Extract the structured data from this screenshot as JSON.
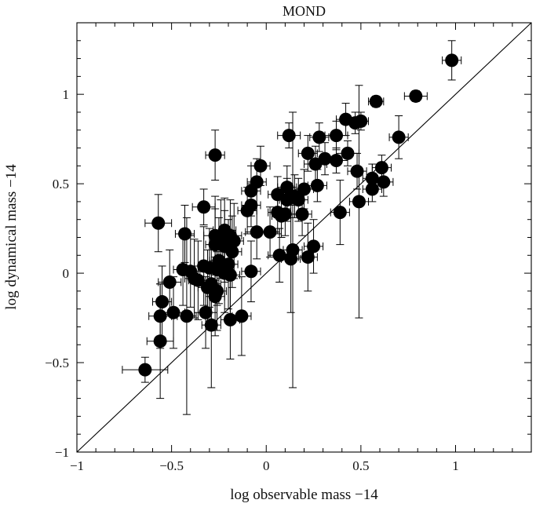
{
  "chart_data": {
    "type": "scatter",
    "title": "MOND",
    "xlabel": "log observable mass −14",
    "ylabel": "log dynamical mass −14",
    "xlim": [
      -1,
      1.4
    ],
    "ylim": [
      -1,
      1.4
    ],
    "x_ticks": [
      {
        "value": -1,
        "label": "−1"
      },
      {
        "value": -0.5,
        "label": "−0.5"
      },
      {
        "value": 0,
        "label": "0"
      },
      {
        "value": 0.5,
        "label": "0.5"
      },
      {
        "value": 1,
        "label": "1"
      }
    ],
    "y_ticks": [
      {
        "value": -1,
        "label": "−1"
      },
      {
        "value": -0.5,
        "label": "−0.5"
      },
      {
        "value": 0,
        "label": "0"
      },
      {
        "value": 0.5,
        "label": "0.5"
      },
      {
        "value": 1,
        "label": "1"
      }
    ],
    "reference_line": {
      "description": "y = x",
      "from": [
        -1,
        -1
      ],
      "to": [
        1.4,
        1.4
      ]
    },
    "grid": false,
    "marker_color": "#000000",
    "points": [
      {
        "x": 0.98,
        "y": 1.19,
        "xerr": 0.05,
        "yerr": 0.11
      },
      {
        "x": 0.79,
        "y": 0.99,
        "xerr": 0.06,
        "yerr": 0.03
      },
      {
        "x": 0.58,
        "y": 0.96,
        "xerr": 0.04,
        "yerr": 0.03
      },
      {
        "x": 0.42,
        "y": 0.86,
        "xerr": 0.05,
        "yerr": 0.09
      },
      {
        "x": 0.47,
        "y": 0.84,
        "xerr": 0.05,
        "yerr": 0.06
      },
      {
        "x": 0.5,
        "y": 0.85,
        "xerr": 0.04,
        "yerr": 0.05
      },
      {
        "x": 0.7,
        "y": 0.76,
        "xerr": 0.05,
        "yerr": 0.12
      },
      {
        "x": 0.12,
        "y": 0.77,
        "xerr": 0.06,
        "yerr": 0.07
      },
      {
        "x": 0.28,
        "y": 0.76,
        "xerr": 0.05,
        "yerr": 0.08
      },
      {
        "x": 0.37,
        "y": 0.77,
        "xerr": 0.06,
        "yerr": 0.08
      },
      {
        "x": 0.22,
        "y": 0.67,
        "xerr": 0.05,
        "yerr": 0.1
      },
      {
        "x": 0.43,
        "y": 0.67,
        "xerr": 0.06,
        "yerr": 0.07
      },
      {
        "x": -0.27,
        "y": 0.66,
        "xerr": 0.05,
        "yerr": 0.14
      },
      {
        "x": 0.31,
        "y": 0.64,
        "xerr": 0.05,
        "yerr": 0.09
      },
      {
        "x": 0.37,
        "y": 0.63,
        "xerr": 0.06,
        "yerr": 0.07
      },
      {
        "x": 0.26,
        "y": 0.61,
        "xerr": 0.06,
        "yerr": 0.1
      },
      {
        "x": -0.03,
        "y": 0.6,
        "xerr": 0.05,
        "yerr": 0.11
      },
      {
        "x": 0.61,
        "y": 0.59,
        "xerr": 0.05,
        "yerr": 0.07
      },
      {
        "x": 0.48,
        "y": 0.57,
        "xerr": 0.05,
        "yerr": 0.1
      },
      {
        "x": 0.56,
        "y": 0.53,
        "xerr": 0.05,
        "yerr": 0.08
      },
      {
        "x": 0.62,
        "y": 0.51,
        "xerr": 0.05,
        "yerr": 0.08
      },
      {
        "x": -0.05,
        "y": 0.51,
        "xerr": 0.05,
        "yerr": 0.13
      },
      {
        "x": 0.27,
        "y": 0.49,
        "xerr": 0.05,
        "yerr": 0.09
      },
      {
        "x": 0.11,
        "y": 0.48,
        "xerr": 0.05,
        "yerr": 0.12
      },
      {
        "x": 0.56,
        "y": 0.47,
        "xerr": 0.05,
        "yerr": 0.07
      },
      {
        "x": 0.2,
        "y": 0.47,
        "xerr": 0.05,
        "yerr": 0.11
      },
      {
        "x": -0.08,
        "y": 0.46,
        "xerr": 0.05,
        "yerr": 0.14
      },
      {
        "x": 0.06,
        "y": 0.44,
        "xerr": 0.05,
        "yerr": 0.1
      },
      {
        "x": 0.15,
        "y": 0.43,
        "xerr": 0.05,
        "yerr": 0.12
      },
      {
        "x": 0.11,
        "y": 0.41,
        "xerr": 0.04,
        "yerr": 0.12
      },
      {
        "x": 0.17,
        "y": 0.41,
        "xerr": 0.05,
        "yerr": 0.12
      },
      {
        "x": 0.49,
        "y": 0.4,
        "xerr": 0.05,
        "yerr": 0.65
      },
      {
        "x": -0.08,
        "y": 0.38,
        "xerr": 0.05,
        "yerr": 0.12
      },
      {
        "x": -0.33,
        "y": 0.37,
        "xerr": 0.06,
        "yerr": 0.1
      },
      {
        "x": -0.1,
        "y": 0.35,
        "xerr": 0.05,
        "yerr": 0.13
      },
      {
        "x": 0.06,
        "y": 0.34,
        "xerr": 0.05,
        "yerr": 0.12
      },
      {
        "x": 0.1,
        "y": 0.33,
        "xerr": 0.05,
        "yerr": 0.12
      },
      {
        "x": 0.39,
        "y": 0.34,
        "xerr": 0.05,
        "yerr": 0.18
      },
      {
        "x": 0.19,
        "y": 0.33,
        "xerr": 0.05,
        "yerr": 0.12
      },
      {
        "x": 0.08,
        "y": 0.32,
        "xerr": 0.05,
        "yerr": 0.12
      },
      {
        "x": -0.57,
        "y": 0.28,
        "xerr": 0.07,
        "yerr": 0.16
      },
      {
        "x": -0.43,
        "y": 0.22,
        "xerr": 0.05,
        "yerr": 0.16
      },
      {
        "x": -0.05,
        "y": 0.23,
        "xerr": 0.06,
        "yerr": 0.15
      },
      {
        "x": -0.22,
        "y": 0.24,
        "xerr": 0.06,
        "yerr": 0.18
      },
      {
        "x": 0.02,
        "y": 0.23,
        "xerr": 0.05,
        "yerr": 0.14
      },
      {
        "x": -0.27,
        "y": 0.21,
        "xerr": 0.06,
        "yerr": 0.22
      },
      {
        "x": -0.19,
        "y": 0.21,
        "xerr": 0.06,
        "yerr": 0.2
      },
      {
        "x": -0.24,
        "y": 0.19,
        "xerr": 0.05,
        "yerr": 0.22
      },
      {
        "x": -0.17,
        "y": 0.18,
        "xerr": 0.05,
        "yerr": 0.21
      },
      {
        "x": -0.27,
        "y": 0.16,
        "xerr": 0.05,
        "yerr": 0.2
      },
      {
        "x": -0.22,
        "y": 0.15,
        "xerr": 0.05,
        "yerr": 0.2
      },
      {
        "x": -0.18,
        "y": 0.12,
        "xerr": 0.05,
        "yerr": 0.2
      },
      {
        "x": 0.25,
        "y": 0.15,
        "xerr": 0.05,
        "yerr": 0.15
      },
      {
        "x": 0.14,
        "y": 0.13,
        "xerr": 0.05,
        "yerr": 0.77
      },
      {
        "x": 0.22,
        "y": 0.09,
        "xerr": 0.05,
        "yerr": 0.19
      },
      {
        "x": 0.07,
        "y": 0.1,
        "xerr": 0.06,
        "yerr": 0.15
      },
      {
        "x": 0.13,
        "y": 0.08,
        "xerr": 0.05,
        "yerr": 0.3
      },
      {
        "x": -0.25,
        "y": 0.07,
        "xerr": 0.05,
        "yerr": 0.24
      },
      {
        "x": -0.2,
        "y": 0.05,
        "xerr": 0.05,
        "yerr": 0.25
      },
      {
        "x": -0.33,
        "y": 0.04,
        "xerr": 0.05,
        "yerr": 0.22
      },
      {
        "x": -0.3,
        "y": 0.03,
        "xerr": 0.05,
        "yerr": 0.22
      },
      {
        "x": -0.26,
        "y": 0.02,
        "xerr": 0.05,
        "yerr": 0.2
      },
      {
        "x": -0.44,
        "y": 0.02,
        "xerr": 0.05,
        "yerr": 0.2
      },
      {
        "x": -0.4,
        "y": 0.01,
        "xerr": 0.05,
        "yerr": 0.2
      },
      {
        "x": -0.08,
        "y": 0.01,
        "xerr": 0.05,
        "yerr": 0.17
      },
      {
        "x": -0.22,
        "y": 0.0,
        "xerr": 0.05,
        "yerr": 0.22
      },
      {
        "x": -0.19,
        "y": -0.01,
        "xerr": 0.05,
        "yerr": 0.23
      },
      {
        "x": -0.38,
        "y": -0.03,
        "xerr": 0.05,
        "yerr": 0.22
      },
      {
        "x": -0.36,
        "y": -0.04,
        "xerr": 0.05,
        "yerr": 0.22
      },
      {
        "x": -0.51,
        "y": -0.05,
        "xerr": 0.06,
        "yerr": 0.18
      },
      {
        "x": -0.29,
        "y": -0.06,
        "xerr": 0.05,
        "yerr": 0.22
      },
      {
        "x": -0.31,
        "y": -0.08,
        "xerr": 0.05,
        "yerr": 0.21
      },
      {
        "x": -0.26,
        "y": -0.1,
        "xerr": 0.05,
        "yerr": 0.22
      },
      {
        "x": -0.27,
        "y": -0.13,
        "xerr": 0.05,
        "yerr": 0.22
      },
      {
        "x": -0.55,
        "y": -0.16,
        "xerr": 0.05,
        "yerr": 0.2
      },
      {
        "x": -0.32,
        "y": -0.22,
        "xerr": 0.06,
        "yerr": 0.2
      },
      {
        "x": -0.49,
        "y": -0.22,
        "xerr": 0.06,
        "yerr": 0.2
      },
      {
        "x": -0.56,
        "y": -0.24,
        "xerr": 0.06,
        "yerr": 0.18
      },
      {
        "x": -0.42,
        "y": -0.24,
        "xerr": 0.05,
        "yerr": 0.55
      },
      {
        "x": -0.13,
        "y": -0.24,
        "xerr": 0.05,
        "yerr": 0.22
      },
      {
        "x": -0.19,
        "y": -0.26,
        "xerr": 0.05,
        "yerr": 0.22
      },
      {
        "x": -0.29,
        "y": -0.29,
        "xerr": 0.05,
        "yerr": 0.35
      },
      {
        "x": -0.56,
        "y": -0.38,
        "xerr": 0.07,
        "yerr": 0.32
      },
      {
        "x": -0.64,
        "y": -0.54,
        "xerr": 0.12,
        "yerr": 0.07
      }
    ]
  }
}
